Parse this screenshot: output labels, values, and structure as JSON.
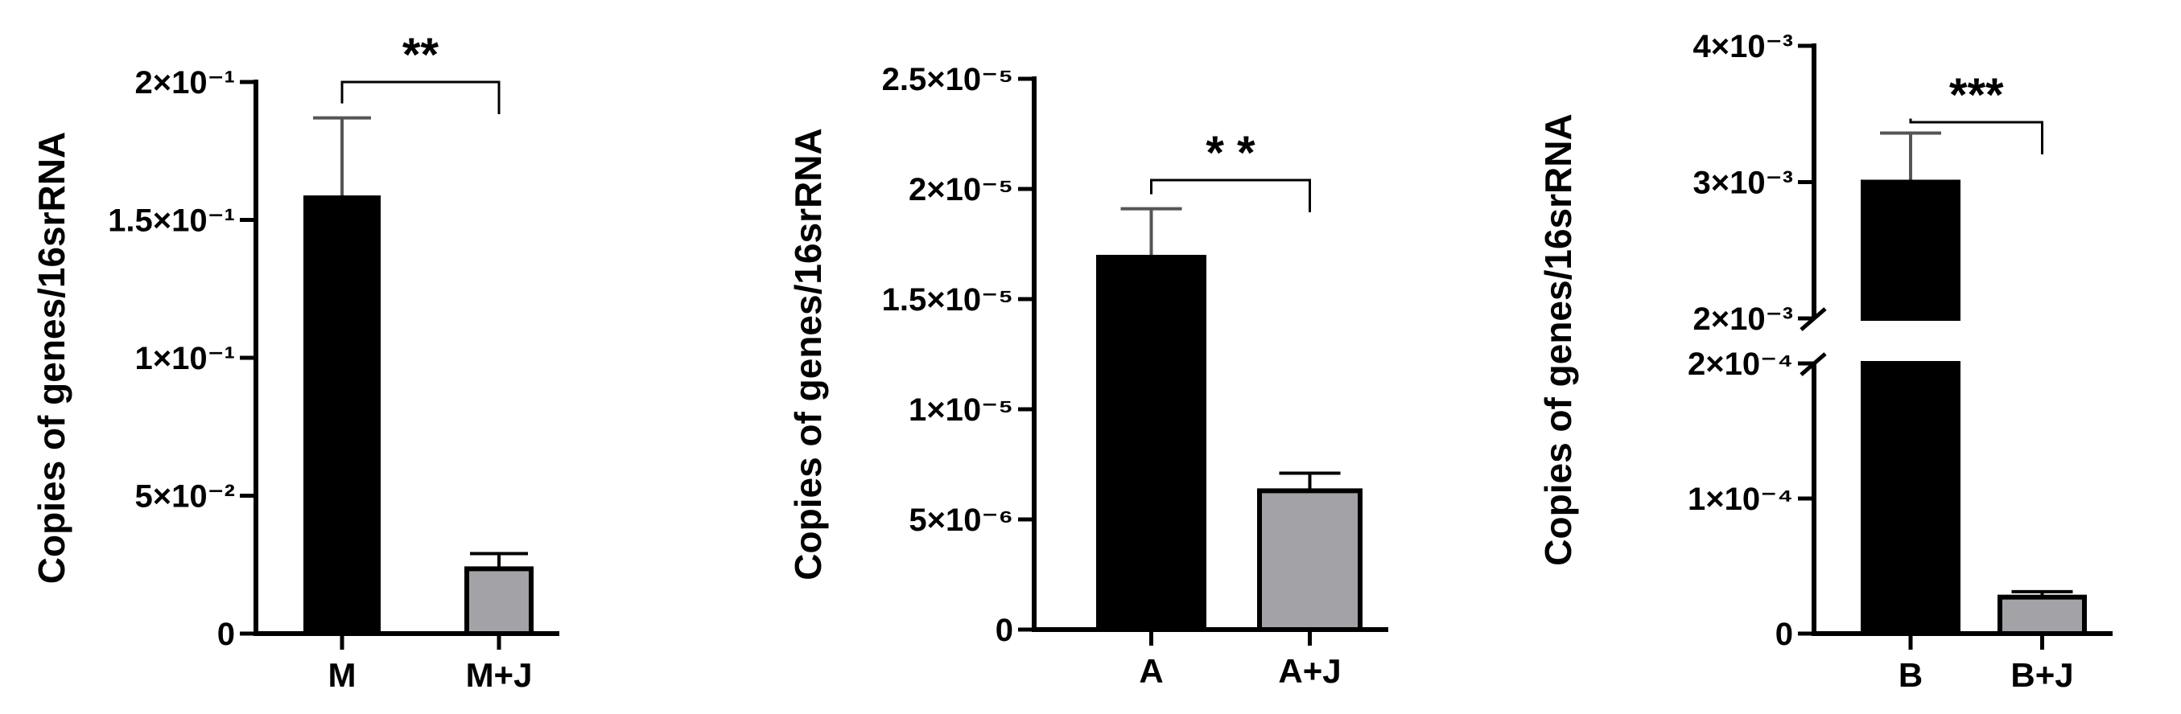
{
  "chart_data": [
    {
      "type": "bar",
      "ylabel": "Copies of genes/16srRNA",
      "categories": [
        "M",
        "M+J"
      ],
      "values": [
        0.158,
        0.0235
      ],
      "errors": [
        0.029,
        0.0055
      ],
      "colors": [
        "#000000",
        "#a3a3a7"
      ],
      "ylim": [
        0,
        0.2
      ],
      "yticks": [
        {
          "value": 0,
          "label": "0"
        },
        {
          "value": 0.05,
          "label": "5×10⁻²"
        },
        {
          "value": 0.1,
          "label": "1×10⁻¹"
        },
        {
          "value": 0.15,
          "label": "1.5×10⁻¹"
        },
        {
          "value": 0.2,
          "label": "2×10⁻¹"
        }
      ],
      "significance": "**"
    },
    {
      "type": "bar",
      "ylabel": "Copies of genes/16srRNA",
      "categories": [
        "A",
        "A+J"
      ],
      "values": [
        1.69e-05,
        6.3e-06
      ],
      "errors": [
        2.2e-06,
        8e-07
      ],
      "colors": [
        "#000000",
        "#a3a3a7"
      ],
      "ylim": [
        0,
        2.5e-05
      ],
      "yticks": [
        {
          "value": 0,
          "label": "0"
        },
        {
          "value": 5e-06,
          "label": "5×10⁻⁶"
        },
        {
          "value": 1e-05,
          "label": "1×10⁻⁵"
        },
        {
          "value": 1.5e-05,
          "label": "1.5×10⁻⁵"
        },
        {
          "value": 2e-05,
          "label": "2×10⁻⁵"
        },
        {
          "value": 2.5e-05,
          "label": "2.5×10⁻⁵"
        }
      ],
      "significance": "* *"
    },
    {
      "type": "bar",
      "ylabel": "Copies of genes/16srRNA",
      "categories": [
        "B",
        "B+J"
      ],
      "values": [
        0.003,
        2.7e-05
      ],
      "errors": [
        0.00036,
        4e-06
      ],
      "colors": [
        "#000000",
        "#a3a3a7"
      ],
      "ylim": [
        0,
        0.004
      ],
      "axis_break": {
        "lower_top": 0.0002,
        "upper_bottom": 0.002
      },
      "yticks": [
        {
          "value": 0,
          "label": "0"
        },
        {
          "value": 0.0001,
          "label": "1×10⁻⁴"
        },
        {
          "value": 0.0002,
          "label": "2×10⁻⁴"
        },
        {
          "value": 0.002,
          "label": "2×10⁻³"
        },
        {
          "value": 0.003,
          "label": "3×10⁻³"
        },
        {
          "value": 0.004,
          "label": "4×10⁻³"
        }
      ],
      "significance": "***"
    }
  ]
}
